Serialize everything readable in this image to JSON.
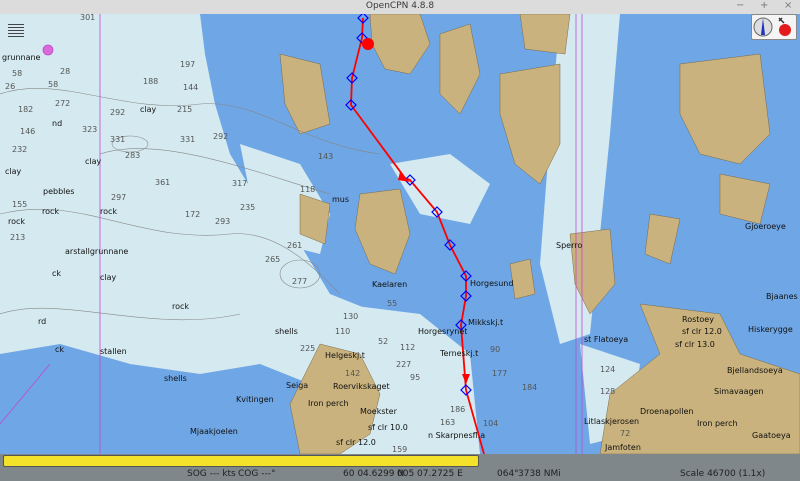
{
  "window": {
    "title": "OpenCPN 4.8.8",
    "minimize": "−",
    "maximize": "+",
    "close": "×"
  },
  "colors": {
    "shallow_water": "#d4eaf0",
    "deep_blue": "#6ea6e6",
    "medium_blue": "#a9c9f0",
    "land": "#c9b27d",
    "route": "#ff0000",
    "waypoint": "#0000ff",
    "boundary": "#c14ad4",
    "progress": "#f3e12a"
  },
  "toolbox": {
    "icons": [
      "compass-icon",
      "track-record-icon"
    ]
  },
  "map": {
    "labels": [
      "grunnane",
      "clay",
      "clay",
      "clay",
      "clay",
      "pebbles",
      "rock",
      "rock",
      "rock",
      "arstallgrunnane",
      "ck",
      "nd",
      "rock",
      "rd",
      "ck",
      "stallen",
      "mus",
      "Kaelaren",
      "Horgesund",
      "Mikkskj.t",
      "Horgesrynet",
      "Terneskj.t",
      "Helgeskj.t",
      "Roervikskaget",
      "Iron perch",
      "Moekster",
      "sf clr 10.0",
      "sf clr 12.0",
      "n Skarpnesfl.a",
      "Seiga",
      "Kvitingen",
      "Mjaakjoelen",
      "shells",
      "shells",
      "st Flatoeya",
      "Rostoey",
      "sf clr 12.0",
      "sf clr 13.0",
      "Bjaanes",
      "Hiskerygge",
      "Bjellandsoeya",
      "Simavaagen",
      "Iron perch",
      "Droenapollen",
      "Litlaskjerosen",
      "Gaatoeya",
      "Jamfoten",
      "Sperro",
      "Gjoeroeye"
    ],
    "depths": [
      "301",
      "58",
      "28",
      "58",
      "26",
      "188",
      "197",
      "144",
      "215",
      "182",
      "272",
      "292",
      "331",
      "331",
      "146",
      "323",
      "232",
      "283",
      "361",
      "155",
      "297",
      "172",
      "293",
      "213",
      "265",
      "143",
      "118",
      "130",
      "110",
      "55",
      "52",
      "227",
      "112",
      "142",
      "95",
      "186",
      "163",
      "159",
      "104",
      "177",
      "184",
      "90",
      "128",
      "124",
      "72",
      "235",
      "277",
      "261",
      "292",
      "225",
      "317"
    ]
  },
  "progress": {
    "value": 0.6
  },
  "status": {
    "sog": "SOG --- kts",
    "cog": "COG ---°",
    "lat": "60 04.6299 N",
    "lon": "005 07.2725 E",
    "bearing": "064°",
    "distance": "3738 NMi",
    "scale": "Scale 46700 (1.1x)"
  }
}
